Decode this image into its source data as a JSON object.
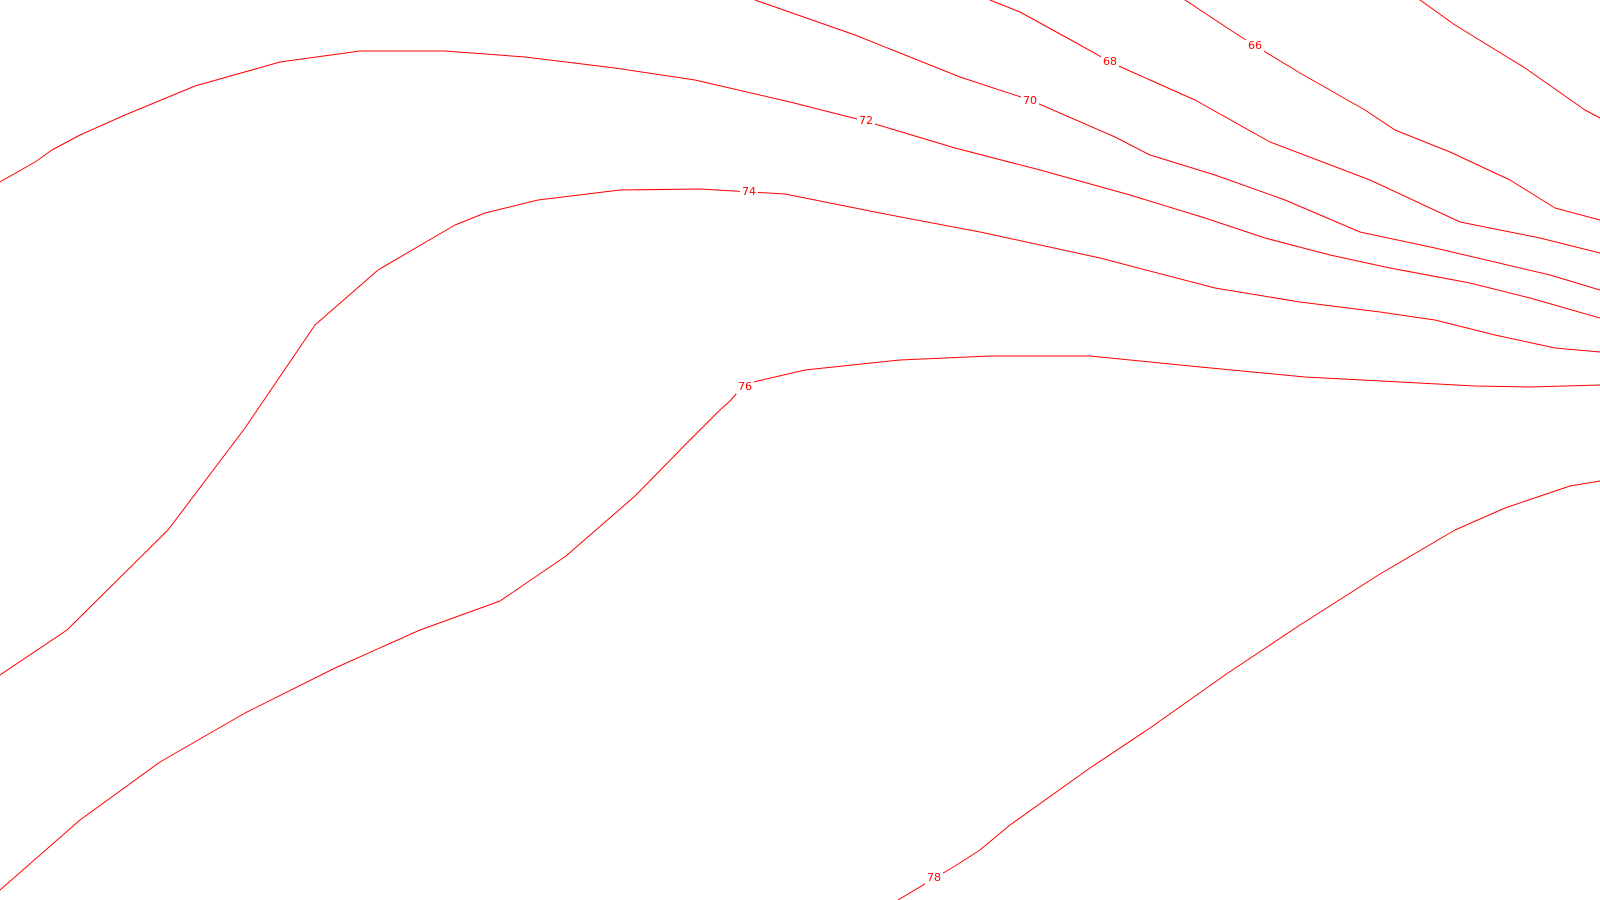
{
  "map": {
    "line_color": "#ff0000",
    "background_color": "#ffffff",
    "contours": [
      {
        "id": "c64",
        "label": ""
      },
      {
        "id": "c66",
        "label": "66"
      },
      {
        "id": "c68",
        "label": "68"
      },
      {
        "id": "c70",
        "label": "70"
      },
      {
        "id": "c72",
        "label": "72"
      },
      {
        "id": "c74",
        "label": "74"
      },
      {
        "id": "c76",
        "label": "76"
      },
      {
        "id": "c78",
        "label": "78"
      }
    ]
  }
}
